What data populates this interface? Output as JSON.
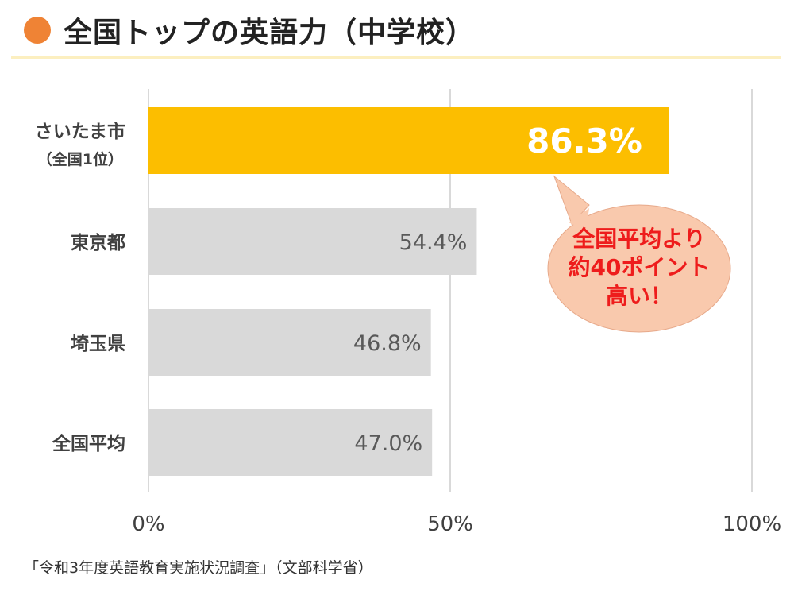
{
  "title": "全国トップの英語力（中学校）",
  "colors": {
    "title_dot": "#ef8335",
    "title_rule": "#fcefc0",
    "highlight_bar": "#fcbe00",
    "other_bar": "#d9d9d9",
    "highlight_label": "#ffffff",
    "other_label": "#595959",
    "gridline": "#d9d9d9",
    "category_text": "#404040",
    "callout_fill": "#f9c9ad",
    "callout_text": "#ee1c1c"
  },
  "callout": {
    "lines": [
      "全国平均より",
      "約40ポイント",
      "高い！"
    ]
  },
  "source": "「令和3年度英語教育実施状況調査」（文部科学省）",
  "chart_data": {
    "type": "bar",
    "orientation": "horizontal",
    "categories": [
      {
        "line1": "さいたま市",
        "line2": "（全国1位）"
      },
      {
        "line1": "東京都",
        "line2": ""
      },
      {
        "line1": "埼玉県",
        "line2": ""
      },
      {
        "line1": "全国平均",
        "line2": ""
      }
    ],
    "values": [
      86.3,
      54.4,
      46.8,
      47.0
    ],
    "value_labels": [
      "86.3%",
      "54.4%",
      "46.8%",
      "47.0%"
    ],
    "highlight_index": 0,
    "xlim": [
      0,
      100
    ],
    "xticks": [
      0,
      50,
      100
    ],
    "xtick_labels": [
      "0%",
      "50%",
      "100%"
    ],
    "grid": true,
    "legend": "none"
  }
}
